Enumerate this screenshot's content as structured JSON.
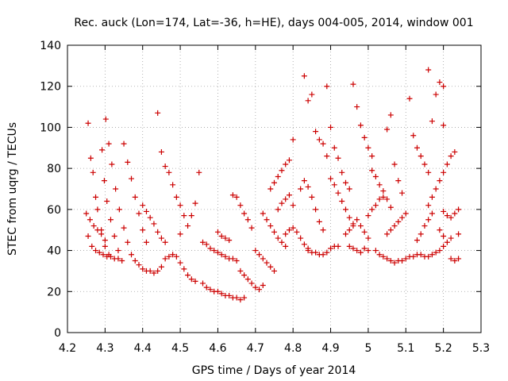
{
  "chart_data": {
    "type": "scatter",
    "title": "Rec. auck (Lon=174, Lat=-36, h=HE), days 004-005, 2014, window 001",
    "xlabel": "GPS time / Days of year 2014",
    "ylabel": "STEC from uqrg / TECUs",
    "xlim": [
      4.2,
      5.3
    ],
    "ylim": [
      0,
      140
    ],
    "x_ticks": [
      "4.2",
      "4.3",
      "4.4",
      "4.5",
      "4.6",
      "4.7",
      "4.8",
      "4.9",
      "5",
      "5.1",
      "5.2",
      "5.3"
    ],
    "y_ticks": [
      "0",
      "20",
      "40",
      "60",
      "80",
      "100",
      "120",
      "140"
    ],
    "grid": true,
    "marker": "+",
    "color": "#cc0000",
    "series": [
      {
        "name": "STEC",
        "points": [
          [
            4.255,
            102
          ],
          [
            4.262,
            85
          ],
          [
            4.268,
            78
          ],
          [
            4.275,
            66
          ],
          [
            4.28,
            60
          ],
          [
            4.29,
            50
          ],
          [
            4.3,
            42
          ],
          [
            4.31,
            38
          ],
          [
            4.292,
            89
          ],
          [
            4.298,
            74
          ],
          [
            4.305,
            64
          ],
          [
            4.315,
            55
          ],
          [
            4.325,
            47
          ],
          [
            4.335,
            40
          ],
          [
            4.302,
            104
          ],
          [
            4.31,
            92
          ],
          [
            4.318,
            82
          ],
          [
            4.328,
            70
          ],
          [
            4.338,
            60
          ],
          [
            4.35,
            51
          ],
          [
            4.36,
            44
          ],
          [
            4.37,
            38
          ],
          [
            4.255,
            47
          ],
          [
            4.265,
            42
          ],
          [
            4.275,
            40
          ],
          [
            4.285,
            39
          ],
          [
            4.295,
            38
          ],
          [
            4.305,
            37
          ],
          [
            4.315,
            37
          ],
          [
            4.325,
            36
          ],
          [
            4.335,
            36
          ],
          [
            4.345,
            35
          ],
          [
            4.25,
            58
          ],
          [
            4.26,
            55
          ],
          [
            4.27,
            52
          ],
          [
            4.28,
            50
          ],
          [
            4.29,
            48
          ],
          [
            4.3,
            45
          ],
          [
            4.35,
            92
          ],
          [
            4.36,
            83
          ],
          [
            4.37,
            75
          ],
          [
            4.38,
            66
          ],
          [
            4.39,
            58
          ],
          [
            4.4,
            50
          ],
          [
            4.41,
            44
          ],
          [
            4.38,
            35
          ],
          [
            4.39,
            33
          ],
          [
            4.4,
            31
          ],
          [
            4.41,
            30
          ],
          [
            4.42,
            30
          ],
          [
            4.43,
            29
          ],
          [
            4.44,
            30
          ],
          [
            4.45,
            32
          ],
          [
            4.4,
            62
          ],
          [
            4.41,
            59
          ],
          [
            4.42,
            56
          ],
          [
            4.43,
            53
          ],
          [
            4.44,
            49
          ],
          [
            4.45,
            46
          ],
          [
            4.46,
            44
          ],
          [
            4.44,
            107
          ],
          [
            4.45,
            88
          ],
          [
            4.46,
            81
          ],
          [
            4.47,
            78
          ],
          [
            4.48,
            72
          ],
          [
            4.49,
            66
          ],
          [
            4.5,
            62
          ],
          [
            4.51,
            57
          ],
          [
            4.46,
            36
          ],
          [
            4.47,
            37
          ],
          [
            4.48,
            38
          ],
          [
            4.49,
            37
          ],
          [
            4.5,
            34
          ],
          [
            4.51,
            31
          ],
          [
            4.52,
            28
          ],
          [
            4.53,
            26
          ],
          [
            4.54,
            25
          ],
          [
            4.55,
            78
          ],
          [
            4.54,
            63
          ],
          [
            4.53,
            57
          ],
          [
            4.52,
            52
          ],
          [
            4.5,
            48
          ],
          [
            4.56,
            24
          ],
          [
            4.57,
            22
          ],
          [
            4.58,
            21
          ],
          [
            4.59,
            20
          ],
          [
            4.6,
            20
          ],
          [
            4.61,
            19
          ],
          [
            4.62,
            18
          ],
          [
            4.63,
            18
          ],
          [
            4.64,
            17
          ],
          [
            4.65,
            17
          ],
          [
            4.66,
            16
          ],
          [
            4.67,
            17
          ],
          [
            4.56,
            44
          ],
          [
            4.57,
            43
          ],
          [
            4.58,
            41
          ],
          [
            4.59,
            40
          ],
          [
            4.6,
            39
          ],
          [
            4.61,
            38
          ],
          [
            4.62,
            37
          ],
          [
            4.63,
            36
          ],
          [
            4.64,
            36
          ],
          [
            4.65,
            35
          ],
          [
            4.6,
            49
          ],
          [
            4.61,
            47
          ],
          [
            4.62,
            46
          ],
          [
            4.63,
            45
          ],
          [
            4.64,
            67
          ],
          [
            4.65,
            66
          ],
          [
            4.66,
            62
          ],
          [
            4.67,
            58
          ],
          [
            4.68,
            55
          ],
          [
            4.69,
            51
          ],
          [
            4.66,
            30
          ],
          [
            4.67,
            28
          ],
          [
            4.68,
            26
          ],
          [
            4.69,
            24
          ],
          [
            4.7,
            22
          ],
          [
            4.71,
            21
          ],
          [
            4.72,
            23
          ],
          [
            4.7,
            40
          ],
          [
            4.71,
            38
          ],
          [
            4.72,
            36
          ],
          [
            4.73,
            34
          ],
          [
            4.74,
            32
          ],
          [
            4.75,
            30
          ],
          [
            4.72,
            58
          ],
          [
            4.73,
            55
          ],
          [
            4.74,
            52
          ],
          [
            4.75,
            49
          ],
          [
            4.76,
            46
          ],
          [
            4.77,
            44
          ],
          [
            4.78,
            42
          ],
          [
            4.74,
            70
          ],
          [
            4.75,
            73
          ],
          [
            4.76,
            76
          ],
          [
            4.77,
            79
          ],
          [
            4.78,
            82
          ],
          [
            4.79,
            84
          ],
          [
            4.8,
            94
          ],
          [
            4.76,
            60
          ],
          [
            4.77,
            63
          ],
          [
            4.78,
            65
          ],
          [
            4.79,
            67
          ],
          [
            4.8,
            62
          ],
          [
            4.78,
            48
          ],
          [
            4.79,
            50
          ],
          [
            4.8,
            51
          ],
          [
            4.81,
            49
          ],
          [
            4.82,
            46
          ],
          [
            4.83,
            43
          ],
          [
            4.84,
            41
          ],
          [
            4.83,
            125
          ],
          [
            4.84,
            113
          ],
          [
            4.85,
            116
          ],
          [
            4.86,
            98
          ],
          [
            4.87,
            94
          ],
          [
            4.88,
            92
          ],
          [
            4.89,
            86
          ],
          [
            4.82,
            70
          ],
          [
            4.83,
            74
          ],
          [
            4.84,
            71
          ],
          [
            4.85,
            66
          ],
          [
            4.86,
            60
          ],
          [
            4.87,
            54
          ],
          [
            4.88,
            50
          ],
          [
            4.84,
            40
          ],
          [
            4.85,
            39
          ],
          [
            4.86,
            39
          ],
          [
            4.87,
            38
          ],
          [
            4.88,
            38
          ],
          [
            4.89,
            39
          ],
          [
            4.9,
            41
          ],
          [
            4.91,
            42
          ],
          [
            4.92,
            42
          ],
          [
            4.89,
            120
          ],
          [
            4.9,
            100
          ],
          [
            4.91,
            90
          ],
          [
            4.92,
            85
          ],
          [
            4.93,
            78
          ],
          [
            4.94,
            73
          ],
          [
            4.95,
            70
          ],
          [
            4.9,
            75
          ],
          [
            4.91,
            72
          ],
          [
            4.92,
            68
          ],
          [
            4.93,
            64
          ],
          [
            4.94,
            60
          ],
          [
            4.95,
            56
          ],
          [
            4.96,
            52
          ],
          [
            4.96,
            121
          ],
          [
            4.97,
            110
          ],
          [
            4.98,
            101
          ],
          [
            4.99,
            95
          ],
          [
            5,
            90
          ],
          [
            5.01,
            86
          ],
          [
            4.94,
            48
          ],
          [
            4.95,
            50
          ],
          [
            4.96,
            53
          ],
          [
            4.97,
            55
          ],
          [
            4.98,
            52
          ],
          [
            4.99,
            49
          ],
          [
            5,
            46
          ],
          [
            4.95,
            42
          ],
          [
            4.96,
            41
          ],
          [
            4.97,
            40
          ],
          [
            4.98,
            39
          ],
          [
            4.99,
            41
          ],
          [
            5,
            40
          ],
          [
            5,
            57
          ],
          [
            5.01,
            60
          ],
          [
            5.02,
            62
          ],
          [
            5.03,
            65
          ],
          [
            5.04,
            66
          ],
          [
            5.01,
            79
          ],
          [
            5.02,
            76
          ],
          [
            5.03,
            72
          ],
          [
            5.04,
            69
          ],
          [
            5.05,
            65
          ],
          [
            5.06,
            61
          ],
          [
            5.05,
            99
          ],
          [
            5.06,
            106
          ],
          [
            5.07,
            82
          ],
          [
            5.08,
            74
          ],
          [
            5.09,
            68
          ],
          [
            5.02,
            40
          ],
          [
            5.03,
            38
          ],
          [
            5.04,
            37
          ],
          [
            5.05,
            36
          ],
          [
            5.06,
            35
          ],
          [
            5.07,
            34
          ],
          [
            5.08,
            35
          ],
          [
            5.09,
            35
          ],
          [
            5.1,
            36
          ],
          [
            5.11,
            37
          ],
          [
            5.12,
            37
          ],
          [
            5.13,
            38
          ],
          [
            5.05,
            48
          ],
          [
            5.06,
            50
          ],
          [
            5.07,
            52
          ],
          [
            5.08,
            54
          ],
          [
            5.09,
            56
          ],
          [
            5.1,
            58
          ],
          [
            5.11,
            114
          ],
          [
            5.12,
            96
          ],
          [
            5.13,
            90
          ],
          [
            5.14,
            86
          ],
          [
            5.15,
            82
          ],
          [
            5.16,
            78
          ],
          [
            5.13,
            45
          ],
          [
            5.14,
            48
          ],
          [
            5.15,
            52
          ],
          [
            5.16,
            55
          ],
          [
            5.17,
            58
          ],
          [
            5.16,
            128
          ],
          [
            5.17,
            103
          ],
          [
            5.18,
            116
          ],
          [
            5.19,
            122
          ],
          [
            5.2,
            120
          ],
          [
            5.2,
            101
          ],
          [
            5.16,
            62
          ],
          [
            5.17,
            66
          ],
          [
            5.18,
            70
          ],
          [
            5.19,
            74
          ],
          [
            5.2,
            78
          ],
          [
            5.21,
            82
          ],
          [
            5.22,
            86
          ],
          [
            5.23,
            88
          ],
          [
            5.14,
            38
          ],
          [
            5.15,
            37
          ],
          [
            5.16,
            37
          ],
          [
            5.17,
            38
          ],
          [
            5.18,
            39
          ],
          [
            5.19,
            40
          ],
          [
            5.2,
            42
          ],
          [
            5.21,
            44
          ],
          [
            5.2,
            59
          ],
          [
            5.21,
            57
          ],
          [
            5.22,
            56
          ],
          [
            5.23,
            58
          ],
          [
            5.24,
            60
          ],
          [
            5.22,
            36
          ],
          [
            5.23,
            35
          ],
          [
            5.24,
            36
          ],
          [
            5.19,
            50
          ],
          [
            5.2,
            47
          ],
          [
            5.22,
            46
          ],
          [
            5.24,
            48
          ]
        ]
      }
    ]
  }
}
